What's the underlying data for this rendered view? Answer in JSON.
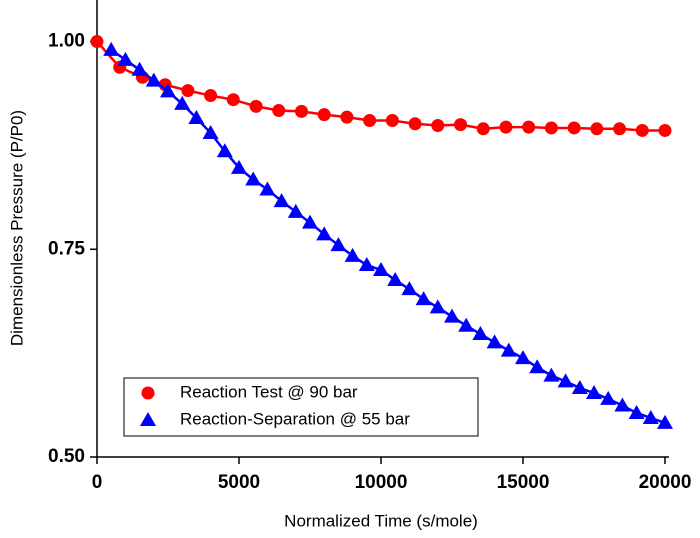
{
  "chart_data": {
    "type": "scatter",
    "xlabel": "Normalized Time (s/mole)",
    "ylabel": "Dimensionless Pressure (P/P0)",
    "xlim": [
      0,
      20000
    ],
    "ylim": [
      0.5,
      1.05
    ],
    "xticks": [
      0,
      5000,
      10000,
      15000,
      20000
    ],
    "yticks": [
      {
        "value": 0.5,
        "label": "0.50"
      },
      {
        "value": 0.75,
        "label": "0.75"
      },
      {
        "value": 1,
        "label": "1.00"
      }
    ],
    "legend": "lower left",
    "series": [
      {
        "name": "Reaction Test @ 90 bar",
        "color": "#ff0000",
        "marker": "circle",
        "x": [
          0,
          800,
          1600,
          2400,
          3200,
          4000,
          4800,
          5600,
          6400,
          7200,
          8000,
          8800,
          9600,
          10400,
          11200,
          12000,
          12800,
          13600,
          14400,
          15200,
          16000,
          16800,
          17600,
          18400,
          19200,
          20000
        ],
        "values": [
          1.0,
          0.969,
          0.957,
          0.948,
          0.941,
          0.935,
          0.93,
          0.922,
          0.917,
          0.916,
          0.912,
          0.909,
          0.905,
          0.905,
          0.901,
          0.899,
          0.9,
          0.895,
          0.897,
          0.897,
          0.896,
          0.896,
          0.895,
          0.895,
          0.893,
          0.893
        ]
      },
      {
        "name": "Reaction-Separation @ 55 bar",
        "color": "#0000ff",
        "marker": "triangle",
        "x": [
          500,
          1000,
          1500,
          2000,
          2500,
          3000,
          3500,
          4000,
          4500,
          5000,
          5500,
          6000,
          6500,
          7000,
          7500,
          8000,
          8500,
          9000,
          9500,
          10000,
          10500,
          11000,
          11500,
          12000,
          12500,
          13000,
          13500,
          14000,
          14500,
          15000,
          15500,
          16000,
          16500,
          17000,
          17500,
          18000,
          18500,
          19000,
          19500,
          20000
        ],
        "values": [
          0.99,
          0.978,
          0.966,
          0.953,
          0.94,
          0.925,
          0.908,
          0.89,
          0.868,
          0.848,
          0.834,
          0.822,
          0.808,
          0.795,
          0.782,
          0.768,
          0.755,
          0.742,
          0.731,
          0.725,
          0.713,
          0.702,
          0.69,
          0.68,
          0.669,
          0.658,
          0.648,
          0.638,
          0.628,
          0.619,
          0.608,
          0.598,
          0.591,
          0.583,
          0.577,
          0.57,
          0.562,
          0.553,
          0.547,
          0.541
        ]
      }
    ]
  }
}
